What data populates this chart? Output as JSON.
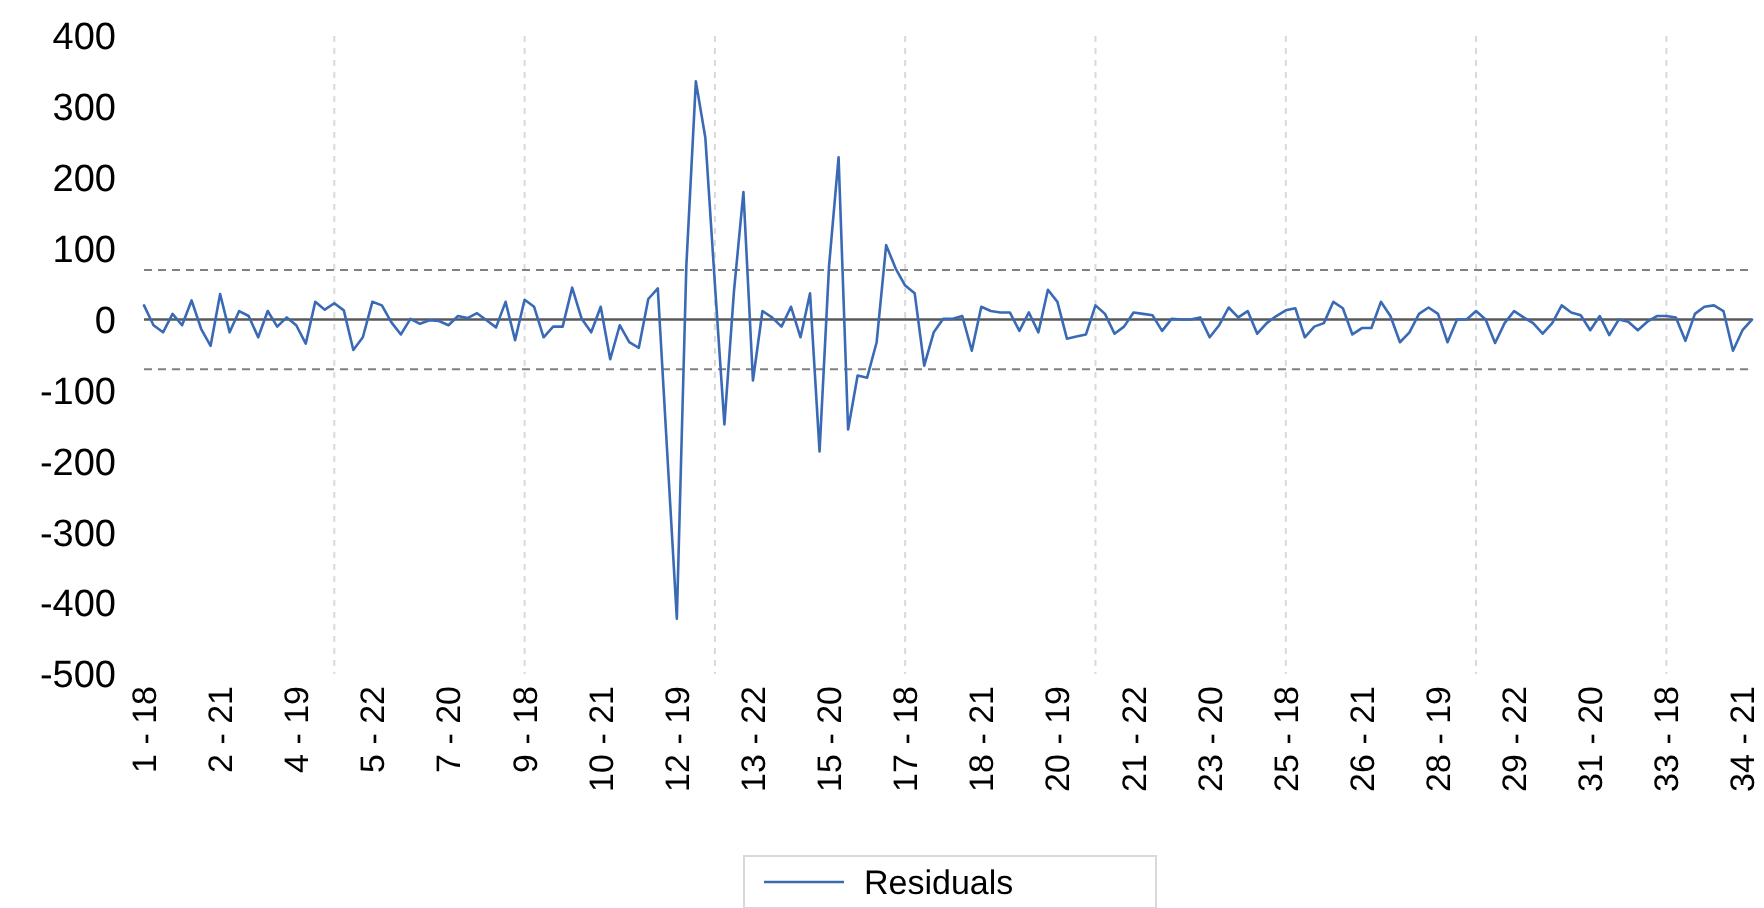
{
  "chart_data": {
    "type": "line",
    "categories": [
      "1 - 18",
      null,
      null,
      null,
      null,
      null,
      null,
      null,
      "2 - 21",
      null,
      null,
      null,
      null,
      null,
      null,
      null,
      "4 - 19",
      null,
      null,
      null,
      null,
      null,
      null,
      null,
      "5 - 22",
      null,
      null,
      null,
      null,
      null,
      null,
      null,
      "7 - 20",
      null,
      null,
      null,
      null,
      null,
      null,
      null,
      "9 - 18",
      null,
      null,
      null,
      null,
      null,
      null,
      null,
      "10 - 21",
      null,
      null,
      null,
      null,
      null,
      null,
      null,
      "12 - 19",
      null,
      null,
      null,
      null,
      null,
      null,
      null,
      "13 - 22",
      null,
      null,
      null,
      null,
      null,
      null,
      null,
      "15 - 20",
      null,
      null,
      null,
      null,
      null,
      null,
      null,
      "17 - 18",
      null,
      null,
      null,
      null,
      null,
      null,
      null,
      "18 - 21",
      null,
      null,
      null,
      null,
      null,
      null,
      null,
      "20 - 19",
      null,
      null,
      null,
      null,
      null,
      null,
      null,
      "21 - 22",
      null,
      null,
      null,
      null,
      null,
      null,
      null,
      "23 - 20",
      null,
      null,
      null,
      null,
      null,
      null,
      null,
      "25 - 18",
      null,
      null,
      null,
      null,
      null,
      null,
      null,
      "26 - 21",
      null,
      null,
      null,
      null,
      null,
      null,
      null,
      "28 - 19",
      null,
      null,
      null,
      null,
      null,
      null,
      null,
      "29 - 22",
      null,
      null,
      null,
      null,
      null,
      null,
      null,
      "31 - 20",
      null,
      null,
      null,
      null,
      null,
      null,
      null,
      "33 - 18",
      null,
      null,
      null,
      null,
      null,
      null,
      null,
      "34 - 21",
      null
    ],
    "series": [
      {
        "name": "Residuals",
        "color": "#3a6ab5",
        "values": [
          20,
          -8,
          -18,
          8,
          -8,
          27,
          -13,
          -37,
          36,
          -18,
          12,
          5,
          -25,
          12,
          -10,
          3,
          -8,
          -34,
          25,
          14,
          23,
          13,
          -43,
          -25,
          25,
          20,
          -4,
          -21,
          1,
          -6,
          -1,
          -2,
          -8,
          5,
          2,
          9,
          -1,
          -11,
          25,
          -29,
          28,
          18,
          -25,
          -10,
          -10,
          45,
          1,
          -18,
          18,
          -56,
          -8,
          -32,
          -40,
          29,
          44,
          -190,
          -422,
          76,
          336,
          256,
          50,
          -148,
          39,
          180,
          -86,
          12,
          3,
          -10,
          18,
          -25,
          37,
          -186,
          76,
          229,
          -155,
          -79,
          -82,
          -32,
          105,
          72,
          48,
          37,
          -65,
          -18,
          1,
          1,
          5,
          -44,
          18,
          12,
          10,
          10,
          -16,
          10,
          -18,
          42,
          25,
          -27,
          -24,
          -21,
          20,
          8,
          -20,
          -10,
          10,
          8,
          6,
          -16,
          1,
          0,
          0,
          3,
          -25,
          -8,
          17,
          3,
          12,
          -20,
          -5,
          5,
          13,
          16,
          -25,
          -10,
          -5,
          25,
          16,
          -21,
          -12,
          -12,
          25,
          5,
          -32,
          -18,
          8,
          17,
          8,
          -32,
          0,
          0,
          12,
          0,
          -33,
          -5,
          12,
          3,
          -5,
          -20,
          -5,
          20,
          10,
          6,
          -15,
          5,
          -22,
          0,
          -3,
          -15,
          -3,
          5,
          5,
          3,
          -30,
          8,
          18,
          20,
          12,
          -44,
          -15,
          0
        ]
      }
    ],
    "ylim": [
      -500,
      400
    ],
    "yticks": [
      -500,
      -400,
      -300,
      -200,
      -100,
      0,
      100,
      200,
      300,
      400
    ],
    "ref_lines": [
      {
        "axis": "y",
        "value": 70,
        "color": "#808080",
        "line_style": "dashed"
      },
      {
        "axis": "y",
        "value": -70,
        "color": "#808080",
        "line_style": "dashed"
      }
    ],
    "grid": "x",
    "legend": "bottom",
    "line_style": "solid"
  }
}
